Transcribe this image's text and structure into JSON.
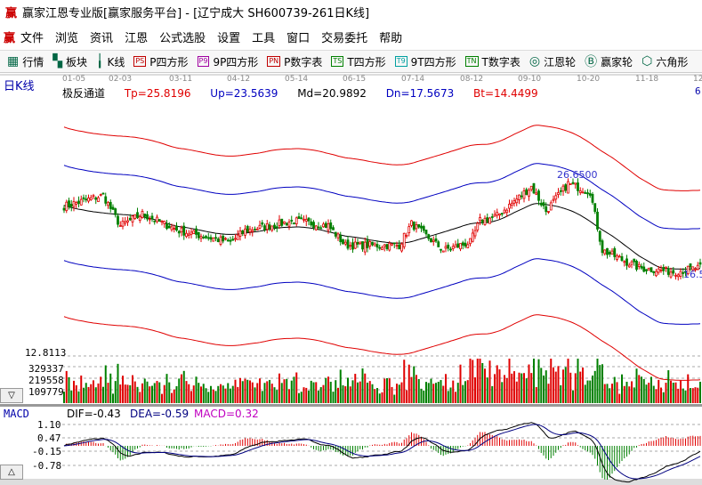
{
  "window": {
    "title": "赢家江恩专业版[赢家服务平台] - [辽宁成大  SH600739-261日K线]",
    "logo": "赢"
  },
  "menu": [
    "文件",
    "浏览",
    "资讯",
    "江恩",
    "公式选股",
    "设置",
    "工具",
    "窗口",
    "交易委托",
    "帮助"
  ],
  "toolbar": [
    {
      "icon": "grid-icon",
      "label": "行情"
    },
    {
      "icon": "blocks-icon",
      "label": "板块"
    },
    {
      "icon": "candles-icon",
      "label": "K线"
    },
    {
      "icon": "PS",
      "label": "P四方形",
      "color": "#c00000"
    },
    {
      "icon": "P9",
      "label": "9P四方形",
      "color": "#a000a0"
    },
    {
      "icon": "PN",
      "label": "P数字表",
      "color": "#c00000"
    },
    {
      "icon": "TS",
      "label": "T四方形",
      "color": "#008000"
    },
    {
      "icon": "T9",
      "label": "9T四方形",
      "color": "#00a0a0"
    },
    {
      "icon": "TN",
      "label": "T数字表",
      "color": "#008000"
    },
    {
      "icon": "wheel-icon",
      "label": "江恩轮"
    },
    {
      "icon": "big-icon",
      "label": "赢家轮"
    },
    {
      "icon": "hexagon-icon",
      "label": "六角形"
    }
  ],
  "chart": {
    "period_label": "日K线",
    "dates": [
      "01-05",
      "02-03",
      "03-11",
      "04-12",
      "05-14",
      "06-15",
      "07-14",
      "08-12",
      "09-10",
      "10-20",
      "11-18",
      "12-"
    ],
    "indicator": {
      "name": "极反通道",
      "tp": "Tp=25.8196",
      "up": "Up=23.5639",
      "md": "Md=20.9892",
      "dn": "Dn=17.5673",
      "bt": "Bt=14.4499"
    },
    "right_edge": "6",
    "high_label": "26.6500",
    "low_label": "16.5",
    "colors": {
      "up": "#e00000",
      "down": "#008000",
      "mid": "#000000",
      "band_inner": "#0000c0",
      "band_outer": "#e00000"
    }
  },
  "volume": {
    "labels": [
      "12.8113",
      "329337",
      "219558",
      "109779"
    ]
  },
  "macd": {
    "name": "MACD",
    "dif": "DIF=-0.43",
    "dea": "DEA=-0.59",
    "macd": "MACD=0.32",
    "ticks": [
      "1.10",
      "0.47",
      "-0.15",
      "-0.78"
    ]
  },
  "chart_data": {
    "type": "candlestick",
    "close_keypoints": [
      [
        0,
        23.5
      ],
      [
        16,
        24.6
      ],
      [
        23,
        21.5
      ],
      [
        32,
        22.7
      ],
      [
        47,
        21.0
      ],
      [
        68,
        19.8
      ],
      [
        74,
        21.0
      ],
      [
        94,
        22.0
      ],
      [
        108,
        21.5
      ],
      [
        115,
        19.5
      ],
      [
        137,
        19.5
      ],
      [
        142,
        21.7
      ],
      [
        155,
        19.0
      ],
      [
        166,
        19.8
      ],
      [
        170,
        22.0
      ],
      [
        177,
        22.5
      ],
      [
        191,
        25.5
      ],
      [
        197,
        23.0
      ],
      [
        206,
        25.8
      ],
      [
        215,
        25.0
      ],
      [
        220,
        19.0
      ],
      [
        235,
        17.2
      ],
      [
        249,
        16.8
      ],
      [
        260,
        17.2
      ]
    ]
  }
}
